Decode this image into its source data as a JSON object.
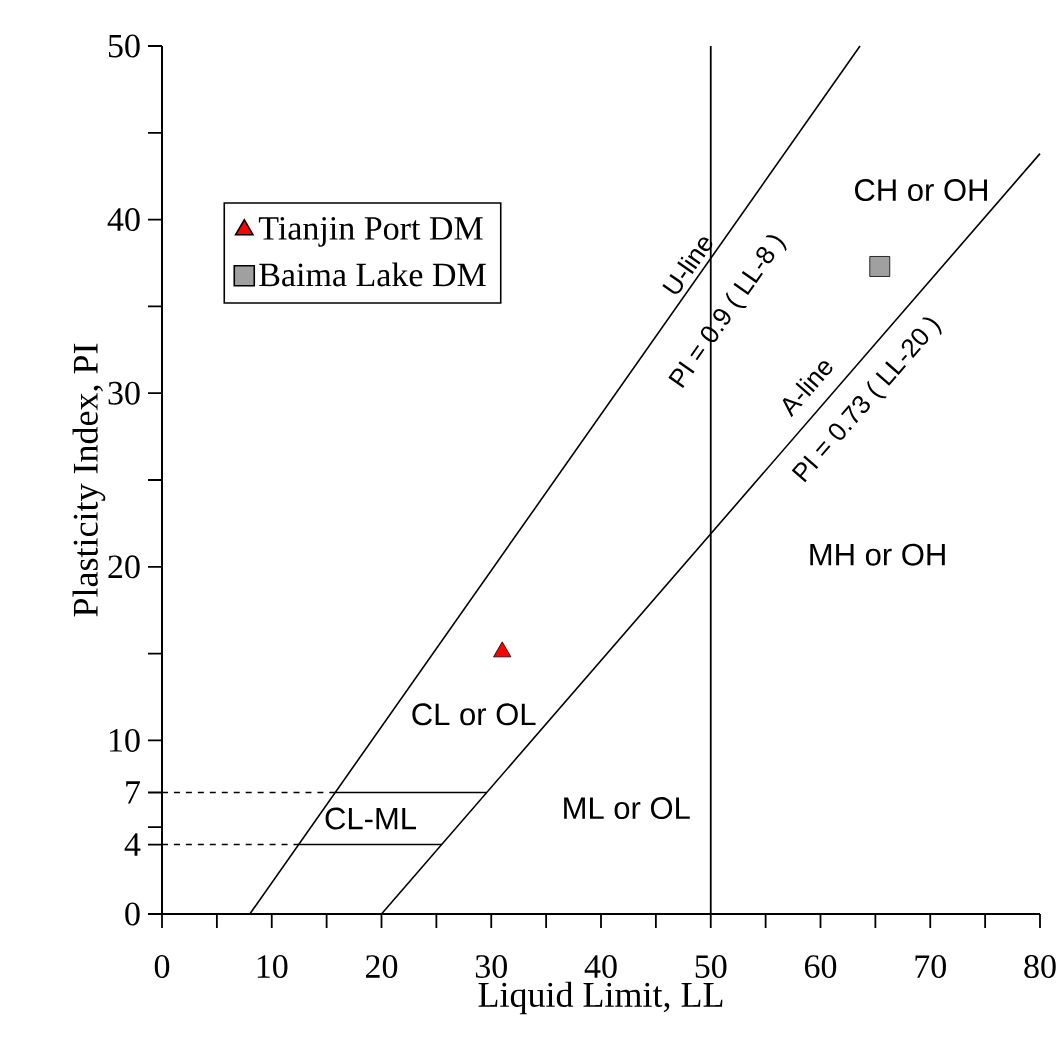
{
  "chart_data": {
    "type": "scatter",
    "xlabel": "Liquid Limit, LL",
    "ylabel": "Plasticity Index, PI",
    "xlim": [
      0,
      80
    ],
    "ylim": [
      0,
      50
    ],
    "xticks": [
      0,
      {
        "value": 5,
        "label": null
      },
      10,
      {
        "value": 15,
        "label": null
      },
      20,
      {
        "value": 25,
        "label": null
      },
      30,
      {
        "value": 35,
        "label": null
      },
      40,
      {
        "value": 45,
        "label": null
      },
      50,
      {
        "value": 55,
        "label": null
      },
      60,
      {
        "value": 65,
        "label": null
      },
      70,
      {
        "value": 75,
        "label": null
      },
      80
    ],
    "yticks": [
      0,
      4,
      {
        "value": 5,
        "label": null
      },
      7,
      10,
      {
        "value": 15,
        "label": null
      },
      20,
      {
        "value": 25,
        "label": null
      },
      30,
      {
        "value": 35,
        "label": null
      },
      40,
      {
        "value": 45,
        "label": null
      },
      50
    ],
    "legend": "top left",
    "series": [
      {
        "name": "Tianjin Port DM",
        "marker": "triangle",
        "color": "#ff0000",
        "x": [
          31.0
        ],
        "values": [
          15.1
        ]
      },
      {
        "name": "Baima Lake DM",
        "marker": "square",
        "color": "#a0a0a0",
        "x": [
          65.4
        ],
        "values": [
          37.3
        ]
      },
      {
        "type": "line",
        "color": "#000000",
        "line_style": "solid",
        "x": [
          8,
          63.6
        ],
        "values": [
          0,
          50
        ]
      },
      {
        "type": "line",
        "color": "#000000",
        "line_style": "solid",
        "x": [
          20,
          80
        ],
        "values": [
          0,
          43.8
        ]
      },
      {
        "type": "line",
        "color": "#000000",
        "line_style": "solid",
        "x": [
          15.8,
          29.6
        ],
        "values": [
          7,
          7
        ]
      },
      {
        "type": "line",
        "color": "#000000",
        "line_style": "solid",
        "x": [
          12.4,
          25.5
        ],
        "values": [
          4,
          4
        ]
      },
      {
        "type": "line",
        "color": "#000000",
        "line_style": "dashed",
        "x": [
          0,
          15.8
        ],
        "values": [
          7,
          7
        ]
      },
      {
        "type": "line",
        "color": "#000000",
        "line_style": "dashed",
        "x": [
          0,
          12.4
        ],
        "values": [
          4,
          4
        ]
      }
    ],
    "ref_lines": [
      {
        "axis": "x",
        "value": 50,
        "color": "#000000"
      }
    ],
    "annotations": [
      "U-line",
      "PI = 0.9 ( LL-8 )",
      "A-line",
      "PI = 0.73 ( LL-20 )",
      "CH or OH",
      "MH or OH",
      "CL or OL",
      "CL-ML",
      "ML or OL"
    ]
  }
}
